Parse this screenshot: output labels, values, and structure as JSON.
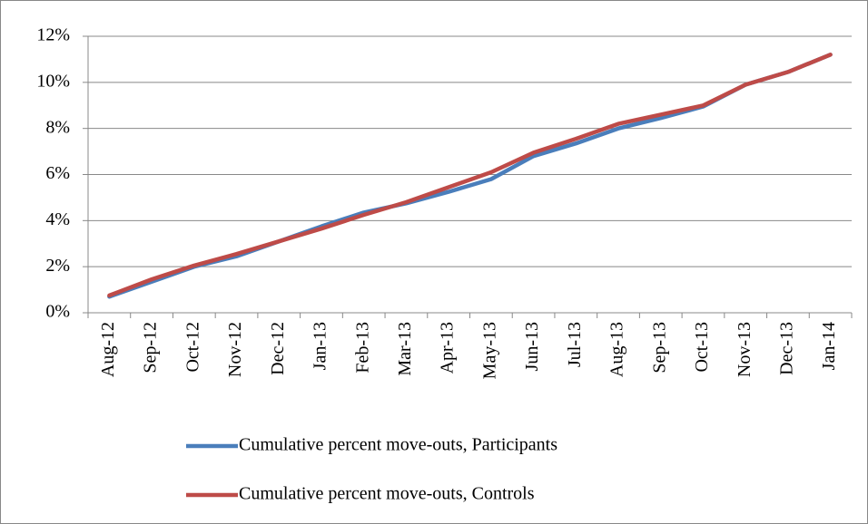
{
  "chart_data": {
    "type": "line",
    "categories": [
      "Aug-12",
      "Sep-12",
      "Oct-12",
      "Nov-12",
      "Dec-12",
      "Jan-13",
      "Feb-13",
      "Mar-13",
      "Apr-13",
      "May-13",
      "Jun-13",
      "Jul-13",
      "Aug-13",
      "Sep-13",
      "Oct-13",
      "Nov-13",
      "Dec-13",
      "Jan-14"
    ],
    "series": [
      {
        "name": "Cumulative percent move-outs, Participants",
        "color": "#4a7ebb",
        "values": [
          0.7,
          1.35,
          2.0,
          2.45,
          3.1,
          3.75,
          4.35,
          4.75,
          5.25,
          5.8,
          6.8,
          7.35,
          8.0,
          8.45,
          8.95,
          9.9,
          10.45,
          11.2
        ]
      },
      {
        "name": "Cumulative percent move-outs, Controls",
        "color": "#be4b48",
        "values": [
          0.75,
          1.45,
          2.05,
          2.55,
          3.1,
          3.65,
          4.25,
          4.8,
          5.45,
          6.1,
          6.95,
          7.55,
          8.2,
          8.6,
          9.0,
          9.9,
          10.45,
          11.2
        ]
      }
    ],
    "ylim": [
      0,
      12
    ],
    "yticks": [
      {
        "value": 0,
        "label": "0%"
      },
      {
        "value": 2,
        "label": "2%"
      },
      {
        "value": 4,
        "label": "4%"
      },
      {
        "value": 6,
        "label": "6%"
      },
      {
        "value": 8,
        "label": "8%"
      },
      {
        "value": 10,
        "label": "10%"
      },
      {
        "value": 12,
        "label": "12%"
      }
    ],
    "grid": true,
    "legend": "bottom"
  }
}
